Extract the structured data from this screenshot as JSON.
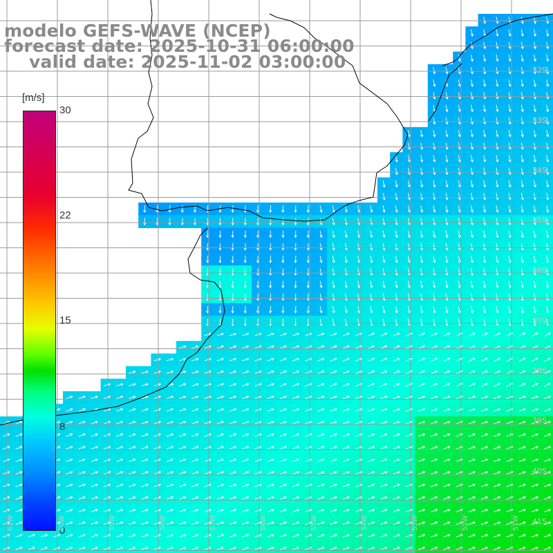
{
  "title": {
    "model": "modelo GEFS-WAVE (NCEP)",
    "forecast": "forecast date: 2025-10-31 06:00:00",
    "valid": "valid date: 2025-11-02 03:00:00"
  },
  "colorbar": {
    "unit": "[m/s]",
    "ticks": [
      "30",
      "22",
      "15",
      "8",
      "0"
    ],
    "colors": [
      "#c0007a",
      "#ff2a00",
      "#ffc800",
      "#00e000",
      "#00ffe0",
      "#0090ff",
      "#0010ff"
    ]
  },
  "axes": {
    "lat_labels": [
      "32S",
      "33S",
      "34S",
      "35S",
      "36S",
      "37S",
      "38S",
      "39S",
      "40S",
      "41S"
    ],
    "lon_labels": [
      "61W",
      "60W",
      "59W",
      "58W",
      "57W",
      "56W",
      "55W",
      "54W",
      "53W",
      "52W",
      "51W"
    ]
  },
  "colors": {
    "grid": "#9a9a9a",
    "coast": "#000000",
    "land": "#ffffff",
    "arrow": "#ffffff",
    "title": "#8a8a8a"
  }
}
